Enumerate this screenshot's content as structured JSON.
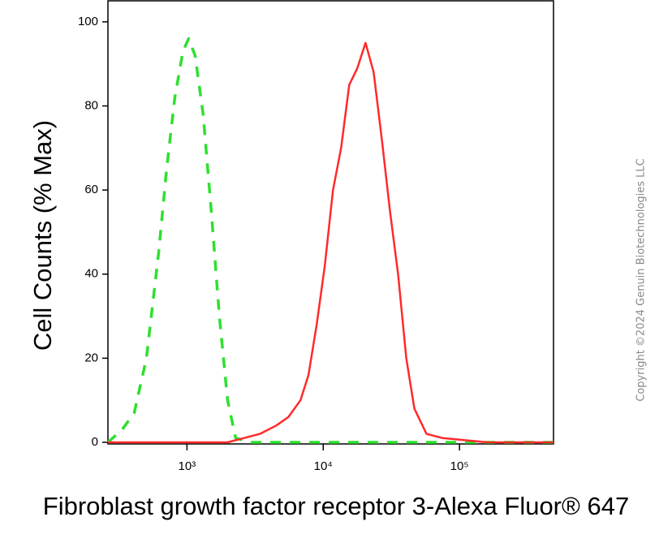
{
  "chart_data": {
    "type": "line",
    "x_label": "Fibroblast growth factor receptor 3-Alexa Fluor® 647",
    "y_label": "Cell Counts (% Max)",
    "copyright": "Copyright ©2024 Genuin Biotechnologies LLC",
    "log_x": true,
    "xlim": [
      263,
      490000
    ],
    "ylim": [
      0,
      105
    ],
    "xticks": [
      {
        "value": 1000,
        "label": "10³"
      },
      {
        "value": 10000,
        "label": "10⁴"
      },
      {
        "value": 100000,
        "label": "10⁵"
      }
    ],
    "yticks": [
      0,
      20,
      40,
      60,
      80,
      100
    ],
    "series": [
      {
        "color": "#2ee02e",
        "dashed": true,
        "x": [
          263,
          334,
          410,
          504,
          619,
          709,
          814,
          934,
          1028,
          1147,
          1315,
          1508,
          1730,
          1985,
          2277,
          2993,
          490000
        ],
        "values": [
          0,
          3,
          7,
          20,
          45,
          65,
          82,
          93,
          96,
          92,
          78,
          55,
          30,
          10,
          1,
          0,
          0
        ]
      },
      {
        "color": "#ff2a2a",
        "dashed": false,
        "x": [
          263,
          1985,
          2610,
          3431,
          4520,
          5550,
          6810,
          7800,
          8950,
          10270,
          11790,
          13530,
          15520,
          17810,
          20440,
          23460,
          26920,
          30890,
          35450,
          40680,
          46680,
          57300,
          75300,
          160000,
          490000
        ],
        "values": [
          0,
          0,
          1,
          2,
          4,
          6,
          10,
          16,
          28,
          42,
          60,
          70,
          85,
          89,
          95,
          88,
          72,
          55,
          40,
          20,
          8,
          2,
          1,
          0,
          0
        ]
      }
    ]
  }
}
